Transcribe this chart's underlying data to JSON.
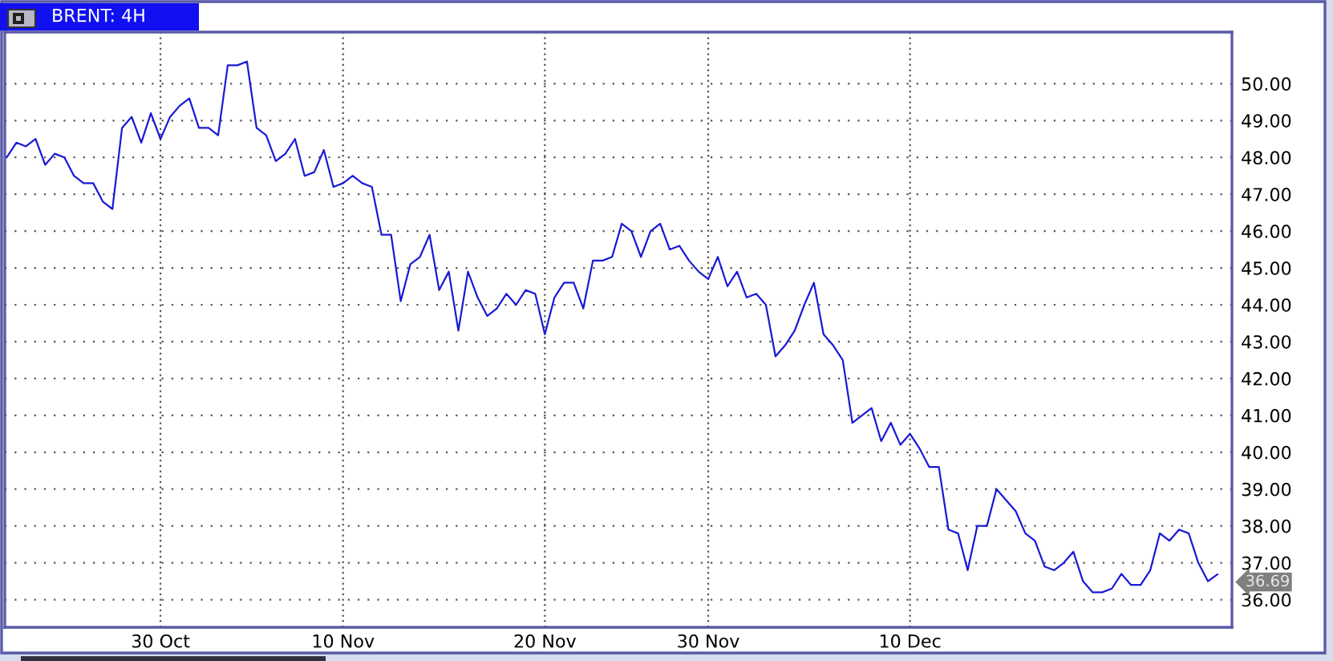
{
  "chart_data": {
    "type": "line",
    "title": "BRENT: 4H",
    "categories": [
      null,
      null,
      null,
      null,
      null,
      null,
      null,
      null,
      null,
      null,
      null,
      null,
      null,
      null,
      null,
      null,
      "30 Oct",
      null,
      null,
      null,
      null,
      null,
      null,
      null,
      null,
      null,
      null,
      null,
      null,
      null,
      null,
      null,
      null,
      null,
      null,
      "10 Nov",
      null,
      null,
      null,
      null,
      null,
      null,
      null,
      null,
      null,
      null,
      null,
      null,
      null,
      null,
      null,
      null,
      null,
      null,
      null,
      null,
      "20 Nov",
      null,
      null,
      null,
      null,
      null,
      null,
      null,
      null,
      null,
      null,
      null,
      null,
      null,
      null,
      null,
      null,
      "30 Nov",
      null,
      null,
      null,
      null,
      null,
      null,
      null,
      null,
      null,
      null,
      null,
      null,
      null,
      null,
      null,
      null,
      null,
      null,
      null,
      null,
      "10 Dec",
      null,
      null,
      null,
      null,
      null,
      null,
      null,
      null,
      null,
      null,
      null,
      null,
      null,
      null,
      null,
      null,
      null,
      null,
      null,
      null,
      null,
      null,
      null,
      null,
      null,
      null,
      null,
      null,
      null,
      null,
      null,
      null
    ],
    "series": [
      {
        "color": "#1a1ad6",
        "values": [
          48.0,
          48.4,
          48.3,
          48.5,
          47.8,
          48.1,
          48.0,
          47.5,
          47.3,
          47.3,
          46.8,
          46.6,
          48.8,
          49.1,
          48.4,
          49.2,
          48.5,
          49.1,
          49.4,
          49.6,
          48.8,
          48.8,
          48.6,
          50.5,
          50.5,
          50.6,
          48.8,
          48.6,
          47.9,
          48.1,
          48.5,
          47.5,
          47.6,
          48.2,
          47.2,
          47.3,
          47.5,
          47.3,
          47.2,
          45.9,
          45.9,
          44.1,
          45.1,
          45.3,
          45.9,
          44.4,
          44.9,
          43.3,
          44.9,
          44.2,
          43.7,
          43.9,
          44.3,
          44.0,
          44.4,
          44.3,
          43.2,
          44.2,
          44.6,
          44.6,
          43.9,
          45.2,
          45.2,
          45.3,
          46.2,
          46.0,
          45.3,
          46.0,
          46.2,
          45.5,
          45.6,
          45.2,
          44.9,
          44.7,
          45.3,
          44.5,
          44.9,
          44.2,
          44.3,
          44.0,
          42.6,
          42.9,
          43.3,
          44.0,
          44.6,
          43.2,
          42.9,
          42.5,
          40.8,
          41.0,
          41.2,
          40.3,
          40.8,
          40.2,
          40.5,
          40.1,
          39.6,
          39.6,
          37.9,
          37.8,
          36.8,
          38.0,
          38.0,
          39.0,
          38.7,
          38.4,
          37.8,
          37.6,
          36.9,
          36.8,
          37.0,
          37.3,
          36.5,
          36.2,
          36.2,
          36.3,
          36.7,
          36.4,
          36.4,
          36.8,
          37.8,
          37.6,
          37.9,
          37.8,
          37.0,
          36.5,
          36.69
        ],
        "value_labels": [
          null,
          null,
          null,
          null,
          null,
          null,
          null,
          null,
          null,
          null,
          null,
          null,
          null,
          null,
          null,
          null,
          null,
          null,
          null,
          null,
          null,
          null,
          null,
          null,
          null,
          null,
          null,
          null,
          null,
          null,
          null,
          null,
          null,
          null,
          null,
          null,
          null,
          null,
          null,
          null,
          null,
          null,
          null,
          null,
          null,
          null,
          null,
          null,
          null,
          null,
          null,
          null,
          null,
          null,
          null,
          null,
          null,
          null,
          null,
          null,
          null,
          null,
          null,
          null,
          null,
          null,
          null,
          null,
          null,
          null,
          null,
          null,
          null,
          null,
          null,
          null,
          null,
          null,
          null,
          null,
          null,
          null,
          null,
          null,
          null,
          null,
          null,
          null,
          null,
          null,
          null,
          null,
          null,
          null,
          null,
          null,
          null,
          null,
          null,
          null,
          null,
          null,
          null,
          null,
          null,
          null,
          null,
          null,
          null,
          null,
          null,
          null,
          null,
          null,
          null,
          null,
          null,
          null,
          null,
          null,
          null,
          null,
          null,
          null,
          null,
          null,
          "36.69"
        ]
      }
    ],
    "ylim": [
      35.25,
      51.4
    ],
    "yticks": [
      {
        "value": 36,
        "label": "36.00"
      },
      {
        "value": 37,
        "label": "37.00"
      },
      {
        "value": 38,
        "label": "38.00"
      },
      {
        "value": 39,
        "label": "39.00"
      },
      {
        "value": 40,
        "label": "40.00"
      },
      {
        "value": 41,
        "label": "41.00"
      },
      {
        "value": 42,
        "label": "42.00"
      },
      {
        "value": 43,
        "label": "43.00"
      },
      {
        "value": 44,
        "label": "44.00"
      },
      {
        "value": 45,
        "label": "45.00"
      },
      {
        "value": 46,
        "label": "46.00"
      },
      {
        "value": 47,
        "label": "47.00"
      },
      {
        "value": 48,
        "label": "48.00"
      },
      {
        "value": 49,
        "label": "49.00"
      },
      {
        "value": 50,
        "label": "50.00"
      }
    ],
    "grid": true
  }
}
